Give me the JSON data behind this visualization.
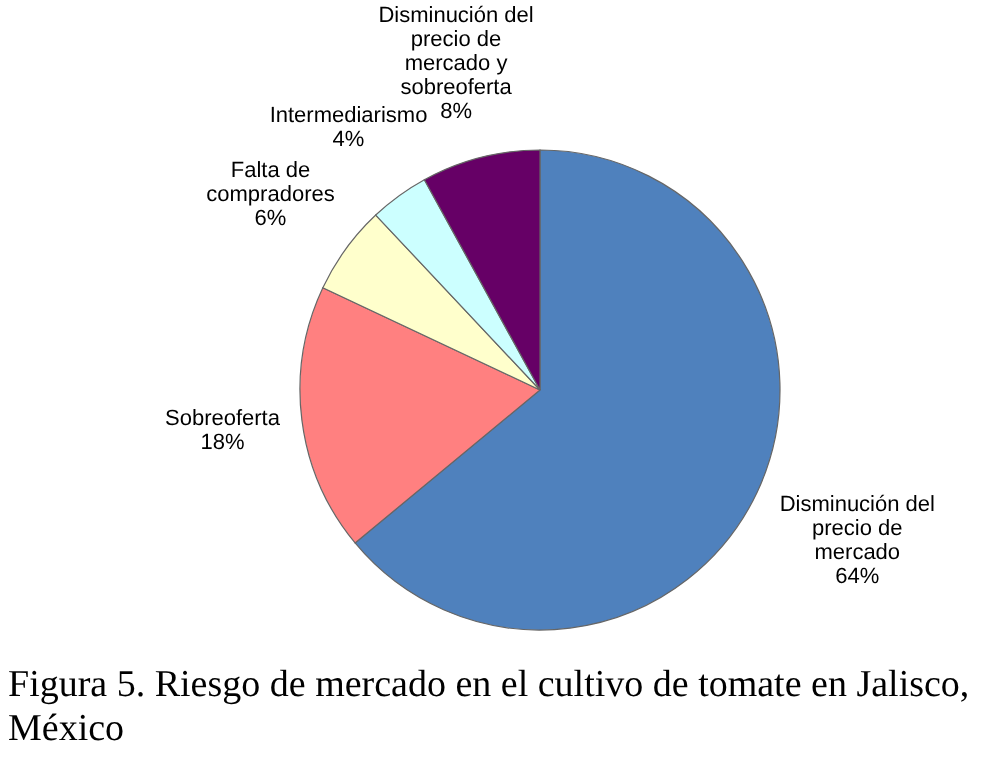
{
  "chart_data": {
    "type": "pie",
    "title": "Figura 5. Riesgo de mercado en el cultivo de tomate en Jalisco, México",
    "categories": [
      "Disminución del precio de mercado",
      "Sobreoferta",
      "Falta de compradores",
      "Intermediarismo",
      "Disminución del precio de mercado y sobreoferta"
    ],
    "values": [
      64,
      18,
      6,
      4,
      8
    ],
    "value_labels": [
      "64%",
      "18%",
      "6%",
      "4%",
      "8%"
    ],
    "colors": [
      "#4f81bd",
      "#ff8080",
      "#ffffcc",
      "#ccffff",
      "#660066"
    ]
  }
}
